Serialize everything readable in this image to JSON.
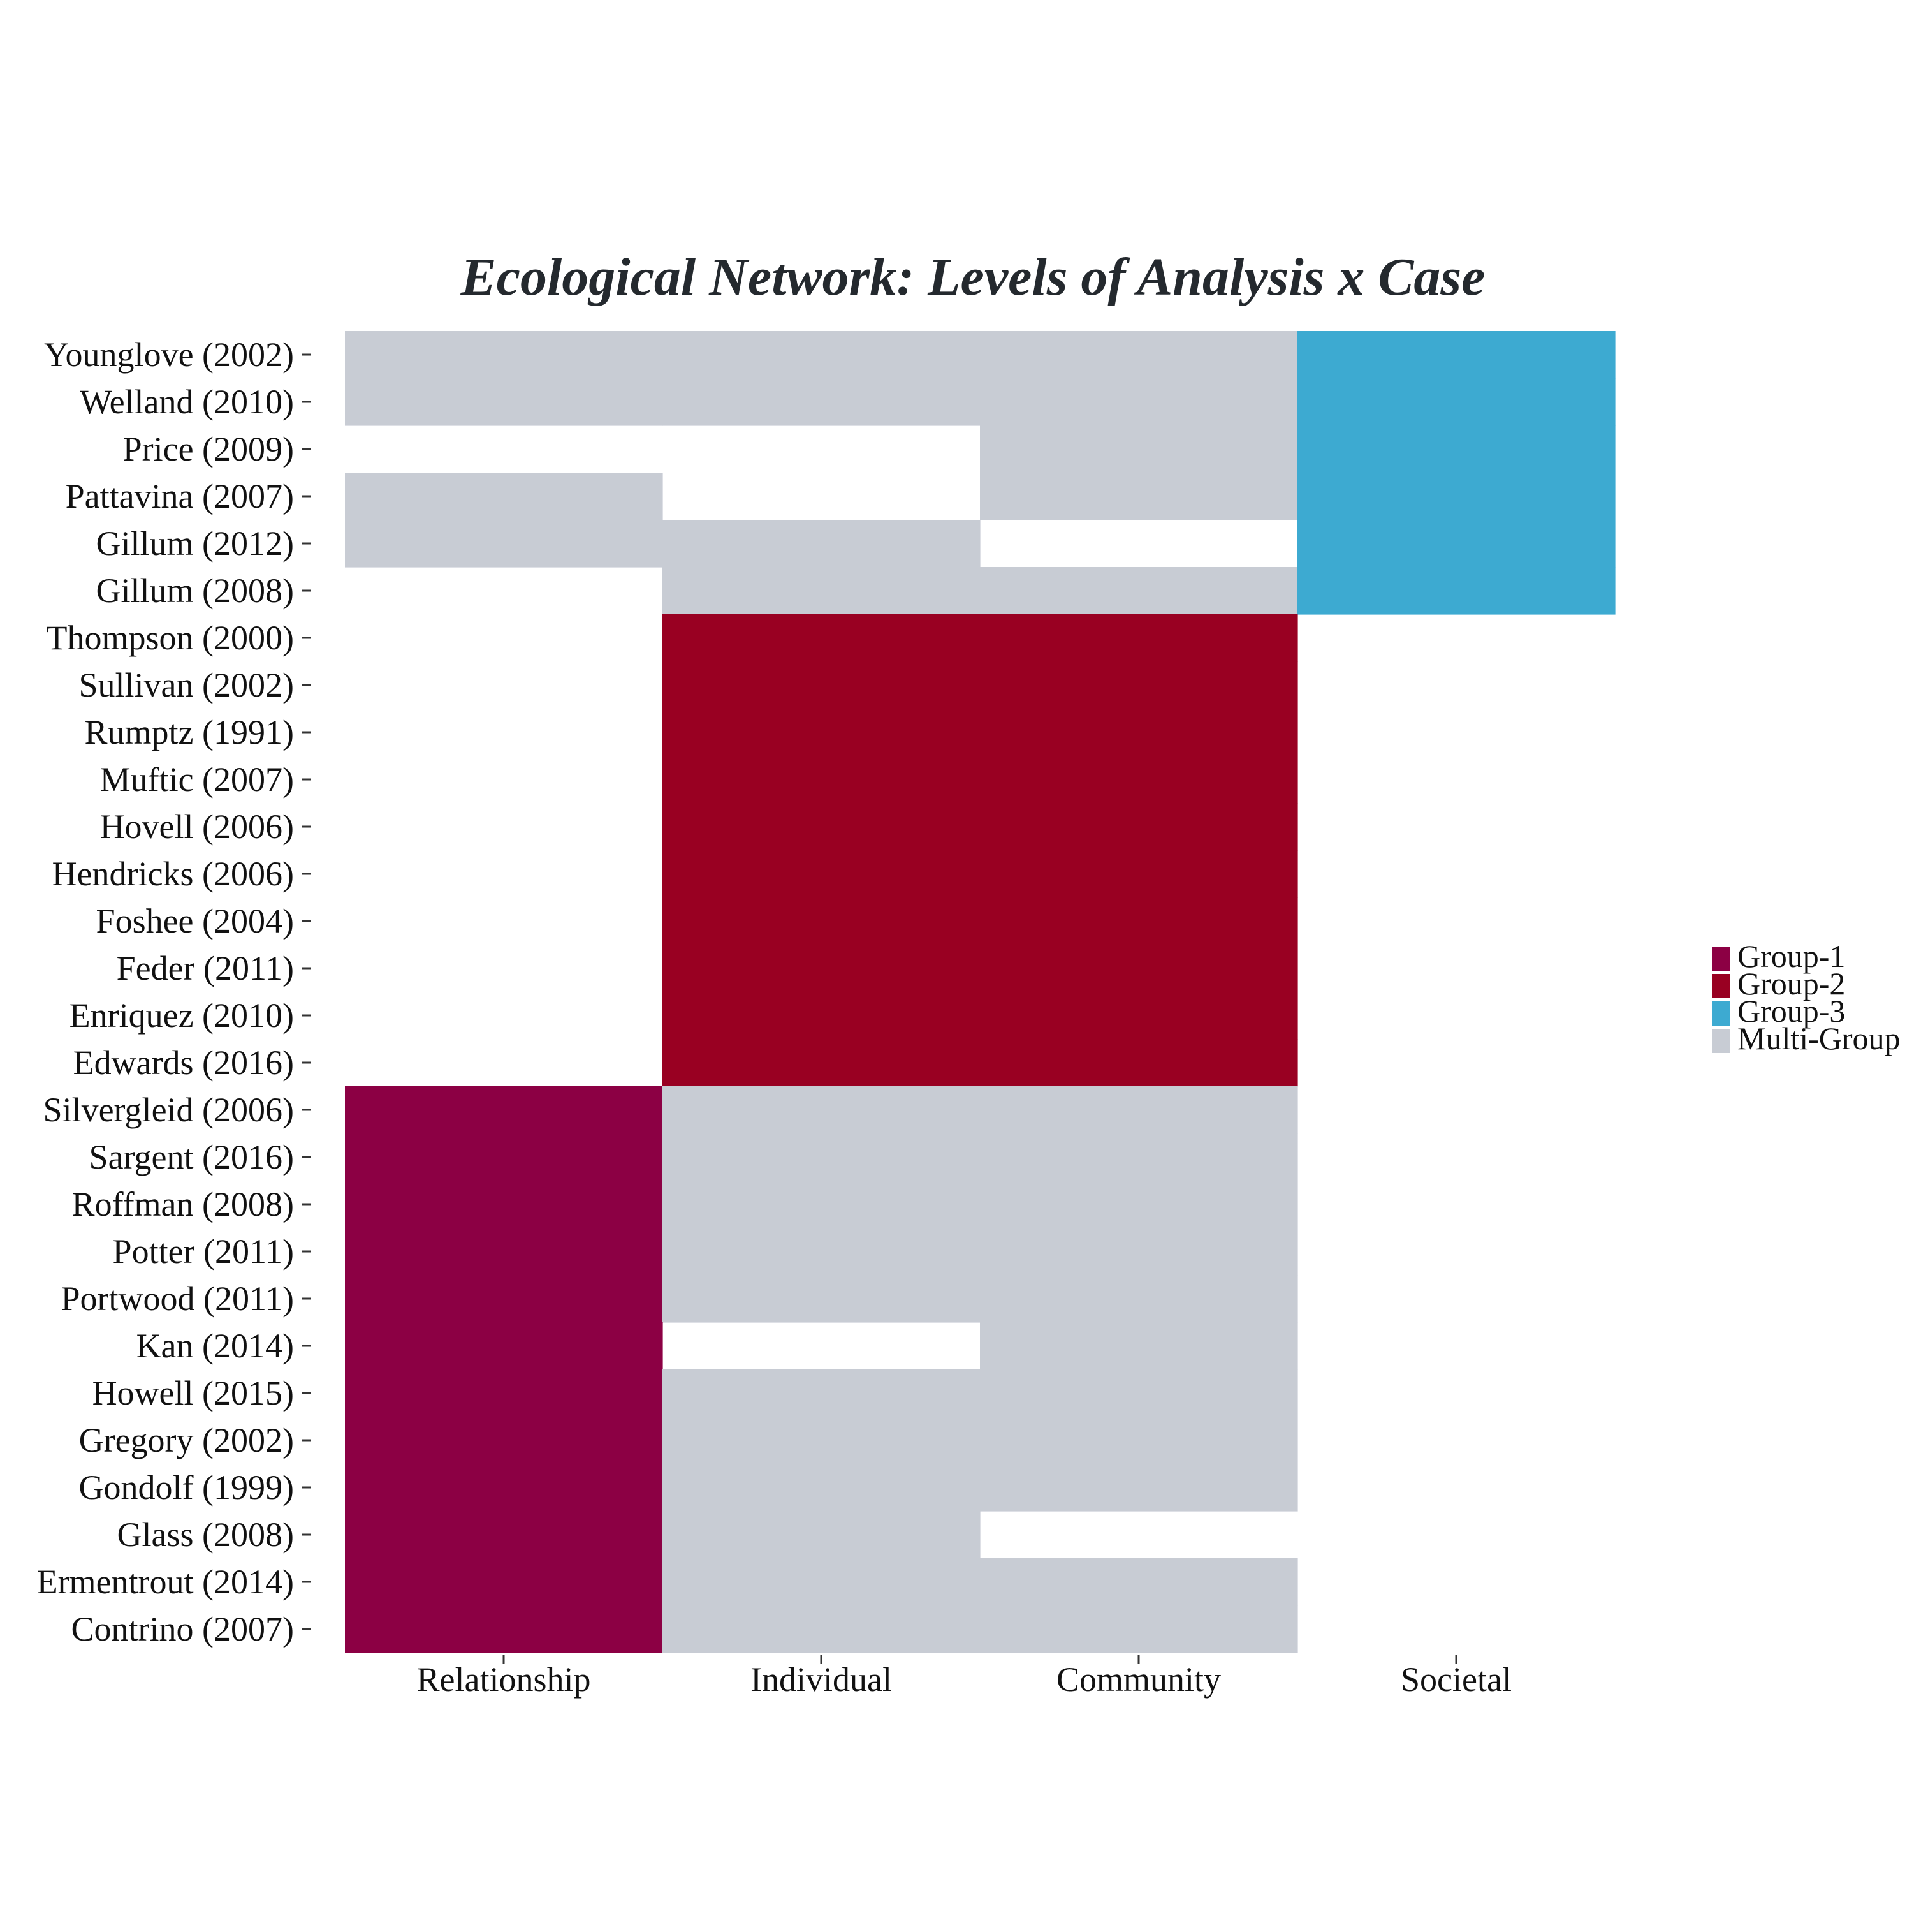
{
  "chart_data": {
    "type": "heatmap",
    "title": "Ecological Network: Levels of Analysis x Case",
    "xlabel": "",
    "ylabel": "",
    "columns": [
      "Relationship",
      "Individual",
      "Community",
      "Societal"
    ],
    "rows": [
      "Younglove (2002)",
      "Welland (2010)",
      "Price (2009)",
      "Pattavina (2007)",
      "Gillum (2012)",
      "Gillum (2008)",
      "Thompson (2000)",
      "Sullivan (2002)",
      "Rumptz (1991)",
      "Muftic (2007)",
      "Hovell (2006)",
      "Hendricks (2006)",
      "Foshee (2004)",
      "Feder (2011)",
      "Enriquez (2010)",
      "Edwards (2016)",
      "Silvergleid (2006)",
      "Sargent (2016)",
      "Roffman (2008)",
      "Potter (2011)",
      "Portwood (2011)",
      "Kan (2014)",
      "Howell (2015)",
      "Gregory (2002)",
      "Gondolf (1999)",
      "Glass (2008)",
      "Ermentrout (2014)",
      "Contrino (2007)"
    ],
    "cells": [
      [
        "Multi-Group",
        "Multi-Group",
        "Multi-Group",
        "Group-3"
      ],
      [
        "Multi-Group",
        "Multi-Group",
        "Multi-Group",
        "Group-3"
      ],
      [
        "",
        "",
        "Multi-Group",
        "Group-3"
      ],
      [
        "Multi-Group",
        "",
        "Multi-Group",
        "Group-3"
      ],
      [
        "Multi-Group",
        "Multi-Group",
        "",
        "Group-3"
      ],
      [
        "",
        "Multi-Group",
        "Multi-Group",
        "Group-3"
      ],
      [
        "",
        "Group-2",
        "Group-2",
        ""
      ],
      [
        "",
        "Group-2",
        "Group-2",
        ""
      ],
      [
        "",
        "Group-2",
        "Group-2",
        ""
      ],
      [
        "",
        "Group-2",
        "Group-2",
        ""
      ],
      [
        "",
        "Group-2",
        "Group-2",
        ""
      ],
      [
        "",
        "Group-2",
        "Group-2",
        ""
      ],
      [
        "",
        "Group-2",
        "Group-2",
        ""
      ],
      [
        "",
        "Group-2",
        "Group-2",
        ""
      ],
      [
        "",
        "Group-2",
        "Group-2",
        ""
      ],
      [
        "",
        "Group-2",
        "Group-2",
        ""
      ],
      [
        "Group-1",
        "Multi-Group",
        "Multi-Group",
        ""
      ],
      [
        "Group-1",
        "Multi-Group",
        "Multi-Group",
        ""
      ],
      [
        "Group-1",
        "Multi-Group",
        "Multi-Group",
        ""
      ],
      [
        "Group-1",
        "Multi-Group",
        "Multi-Group",
        ""
      ],
      [
        "Group-1",
        "Multi-Group",
        "Multi-Group",
        ""
      ],
      [
        "Group-1",
        "",
        "Multi-Group",
        ""
      ],
      [
        "Group-1",
        "Multi-Group",
        "Multi-Group",
        ""
      ],
      [
        "Group-1",
        "Multi-Group",
        "Multi-Group",
        ""
      ],
      [
        "Group-1",
        "Multi-Group",
        "Multi-Group",
        ""
      ],
      [
        "Group-1",
        "Multi-Group",
        "",
        ""
      ],
      [
        "Group-1",
        "Multi-Group",
        "Multi-Group",
        ""
      ],
      [
        "Group-1",
        "Multi-Group",
        "Multi-Group",
        ""
      ]
    ],
    "legend": {
      "placement": "right",
      "items": [
        {
          "label": "Group-1",
          "color": "#8c0044"
        },
        {
          "label": "Group-2",
          "color": "#990022"
        },
        {
          "label": "Group-3",
          "color": "#3daad1"
        },
        {
          "label": "Multi-Group",
          "color": "#c8ccd4"
        }
      ]
    },
    "grid": false,
    "colors": {
      "title": "#24292e",
      "text": "#111111",
      "tick": "#333333"
    }
  }
}
